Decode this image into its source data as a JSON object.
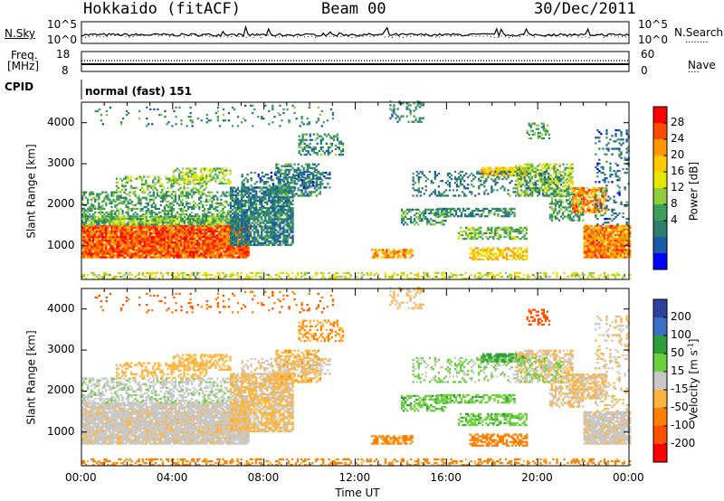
{
  "header": {
    "station": "Hokkaido (fitACF)",
    "beam": "Beam 00",
    "date": "30/Dec/2011"
  },
  "top_panels": {
    "nsky_label": "N.Sky",
    "nsearch_label": "N.Search",
    "nsky_ticks": [
      "10^5",
      "10^0"
    ],
    "nsearch_ticks": [
      "10^5",
      "10^0"
    ],
    "freq_label": "Freq.",
    "freq_unit": "[MHz]",
    "freq_ticks": [
      "18",
      "8"
    ],
    "nave_label": "Nave",
    "nave_ticks": [
      "60",
      "0"
    ],
    "cpid_label": "CPID",
    "cpid_value": "normal (fast) 151"
  },
  "chart_data": [
    {
      "type": "heatmap",
      "name": "power",
      "ylabel": "Slant Range [km]",
      "yticks": [
        1000,
        2000,
        3000,
        4000
      ],
      "ylim": [
        180,
        4500
      ],
      "xlim_hours": [
        0,
        24
      ],
      "colorbar": {
        "label": "Power [dB]",
        "ticks": [
          "28",
          "24",
          "20",
          "16",
          "12",
          "8",
          "4"
        ],
        "colors": [
          "#ff0000",
          "#ff4b00",
          "#ff9600",
          "#ffc800",
          "#e6e600",
          "#8fcd3c",
          "#3c9e5a",
          "#2e7d6e",
          "#1c5aa8",
          "#0000ff"
        ]
      }
    },
    {
      "type": "heatmap",
      "name": "velocity",
      "ylabel": "Slant Range [km]",
      "yticks": [
        1000,
        2000,
        3000,
        4000
      ],
      "ylim": [
        180,
        4500
      ],
      "xlim_hours": [
        0,
        24
      ],
      "xlabel": "Time UT",
      "xticks": [
        "00:00",
        "04:00",
        "08:00",
        "12:00",
        "16:00",
        "20:00",
        "00:00"
      ],
      "colorbar": {
        "label": "Velocity [m s",
        "label_sup": "-1",
        "label_end": "]",
        "ticks": [
          "200",
          "100",
          "50",
          "15",
          "-15",
          "-50",
          "-100",
          "-200"
        ],
        "colors": [
          "#2e3f9e",
          "#3a6ec8",
          "#2e9e3a",
          "#6cd23c",
          "#c8c8c8",
          "#ffb43c",
          "#ff8000",
          "#ff5000",
          "#ff0000"
        ]
      }
    }
  ]
}
